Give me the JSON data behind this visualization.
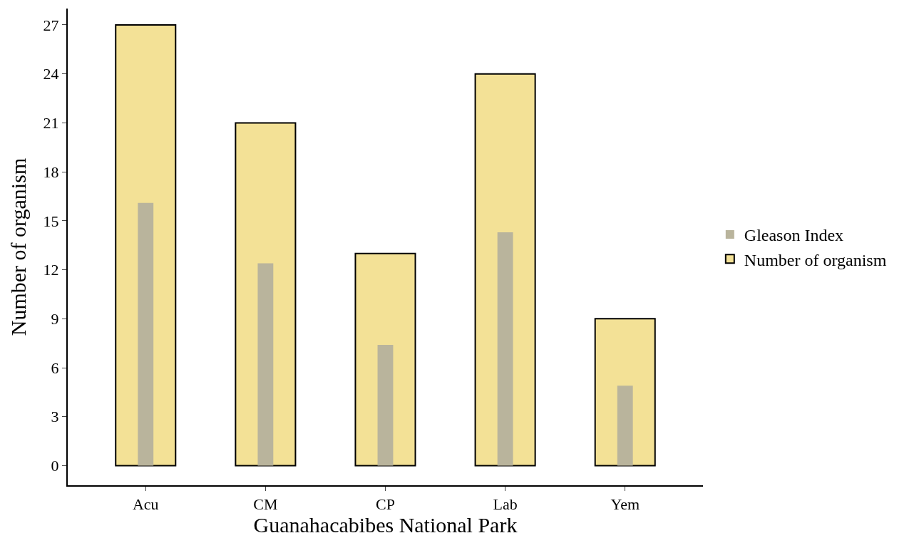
{
  "chart_data": {
    "type": "bar",
    "xlabel": "Guanahacabibes National Park",
    "ylabel": "Number of organism",
    "categories": [
      "Acu",
      "CM",
      "CP",
      "Lab",
      "Yem"
    ],
    "series": [
      {
        "name": "Gleason Index",
        "color": "#b9b49c",
        "values": [
          16.1,
          12.4,
          7.4,
          14.3,
          4.9
        ]
      },
      {
        "name": "Number of organism",
        "color": "#f3e196",
        "values": [
          27,
          21,
          13,
          24,
          9
        ]
      }
    ],
    "ylim": [
      -1.2,
      28
    ],
    "yticks": [
      0,
      3,
      6,
      9,
      12,
      15,
      18,
      21,
      24,
      27
    ],
    "legend": "right"
  }
}
